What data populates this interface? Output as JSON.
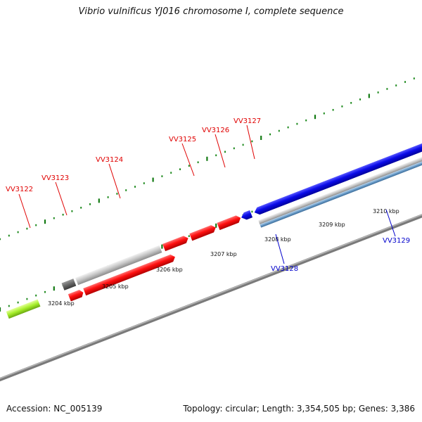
{
  "title": "Vibrio vulnificus YJ016 chromosome I, complete sequence",
  "footer": {
    "accession": "Accession: NC_005139",
    "topology": "Topology: circular; Length: 3,354,505 bp; Genes: 3,386"
  },
  "scale_labels": [
    "3204 kbp",
    "3205 kbp",
    "3206 kbp",
    "3207 kbp",
    "3208 kbp",
    "3209 kbp",
    "3210 kbp"
  ],
  "gene_labels": [
    {
      "text": "VV3122",
      "color": "#e00000"
    },
    {
      "text": "VV3123",
      "color": "#e00000"
    },
    {
      "text": "VV3124",
      "color": "#e00000"
    },
    {
      "text": "VV3125",
      "color": "#e00000"
    },
    {
      "text": "VV3126",
      "color": "#e00000"
    },
    {
      "text": "VV3127",
      "color": "#e00000"
    },
    {
      "text": "VV3128",
      "color": "#0000cc"
    },
    {
      "text": "VV3129",
      "color": "#0000cc"
    }
  ],
  "colors": {
    "forward_gene": "#ff0000",
    "reverse_gene": "#0000ee",
    "backbone": "#808080",
    "ticks": "#1e8a1e"
  }
}
